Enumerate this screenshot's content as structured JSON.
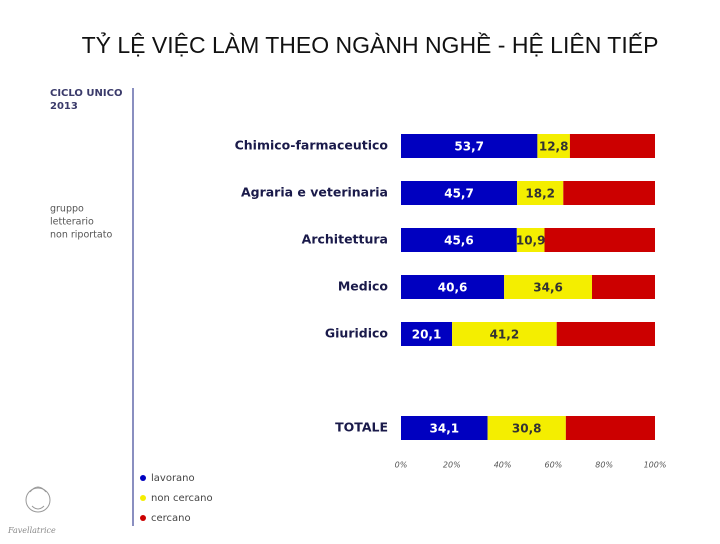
{
  "title": "TỶ LỆ VIỆC LÀM THEO NGÀNH NGHỀ - HỆ LIÊN TIẾP",
  "side_header": [
    "CICLO UNICO",
    "2013"
  ],
  "side_note": [
    "gruppo",
    "letterario",
    "non riportato"
  ],
  "logo_text": "Favellatrice",
  "chart_data": {
    "type": "stacked_barh",
    "categories": [
      "Chimico-farmaceutico",
      "Agraria e veterinaria",
      "Architettura",
      "Medico",
      "Giuridico",
      null,
      "TOTALE"
    ],
    "series": [
      {
        "name": "lavorano",
        "color": "#0000c0",
        "values": [
          53.7,
          45.7,
          45.6,
          40.6,
          20.1,
          null,
          34.1
        ],
        "value_labels": [
          "53,7",
          "45,7",
          "45,6",
          "40,6",
          "20,1",
          null,
          "34,1"
        ]
      },
      {
        "name": "non cercano",
        "color": "#f4ee00",
        "values": [
          12.8,
          18.2,
          10.9,
          34.6,
          41.2,
          null,
          30.8
        ],
        "value_labels": [
          "12,8",
          "18,2",
          "10,9",
          "34,6",
          "41,2",
          null,
          "30,8"
        ]
      },
      {
        "name": "cercano",
        "color": "#cc0000",
        "values": [
          33.5,
          36.1,
          43.5,
          24.8,
          38.7,
          null,
          35.1
        ]
      }
    ],
    "xlim": [
      0,
      100
    ],
    "xticks": [
      {
        "value": 0,
        "label": "0%"
      },
      {
        "value": 20,
        "label": "20%"
      },
      {
        "value": 40,
        "label": "40%"
      },
      {
        "value": 60,
        "label": "60%"
      },
      {
        "value": 80,
        "label": "80%"
      },
      {
        "value": 100,
        "label": "100%"
      }
    ],
    "legend": "bottom-left"
  }
}
